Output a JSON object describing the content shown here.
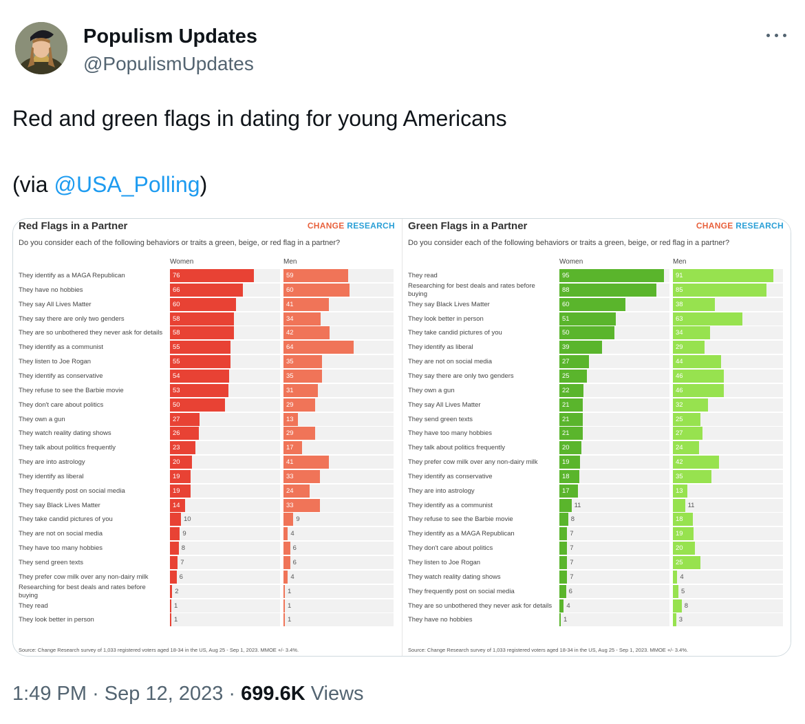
{
  "tweet": {
    "author_name": "Populism Updates",
    "handle": "@PopulismUpdates",
    "text_line1": "Red and green flags in dating for young Americans",
    "text_via_open": "(via ",
    "text_via_link": "@USA_Polling",
    "text_via_close": ")",
    "time": "1:49 PM",
    "separator": "·",
    "date": "Sep 12, 2023",
    "views_count": "699.6K",
    "views_label": "Views",
    "more_icon": "more-horizontal-icon"
  },
  "colors": {
    "red_women": "#e84234",
    "red_men": "#f07458",
    "green_women": "#5ab52c",
    "green_men": "#97e24f",
    "link": "#1d9bf0"
  },
  "chart_data": [
    {
      "type": "bar",
      "orientation": "horizontal",
      "title": "Red Flags in a Partner",
      "brand": [
        "CHANGE",
        "RESEARCH"
      ],
      "subtitle": "Do you consider each of the following behaviors or traits a green, beige, or red flag in a partner?",
      "source": "Source: Change Research survey of 1,033 registered voters aged 18-34 in the US, Aug 25 - Sep 1, 2023. MMOE +/- 3.4%.",
      "xlim": [
        0,
        100
      ],
      "categories": [
        "They identify as a MAGA Republican",
        "They have no hobbies",
        "They say All Lives Matter",
        "They say there are only two genders",
        "They are so unbothered they never ask for details",
        "They identify as a communist",
        "They listen to Joe Rogan",
        "They identify as conservative",
        "They refuse to see the Barbie movie",
        "They don't care about politics",
        "They own a gun",
        "They watch reality dating shows",
        "They talk about politics frequently",
        "They are into astrology",
        "They identify as liberal",
        "They frequently post on social media",
        "They say Black Lives Matter",
        "They take candid pictures of you",
        "They are not on social media",
        "They have too many hobbies",
        "They send green texts",
        "They prefer cow milk over any non-dairy milk",
        "Researching for best deals and rates before buying",
        "They read",
        "They look better in person"
      ],
      "series": [
        {
          "name": "Women",
          "values": [
            76,
            66,
            60,
            58,
            58,
            55,
            55,
            54,
            53,
            50,
            27,
            26,
            23,
            20,
            19,
            19,
            14,
            10,
            9,
            8,
            7,
            6,
            2,
            1,
            1
          ]
        },
        {
          "name": "Men",
          "values": [
            59,
            60,
            41,
            34,
            42,
            64,
            35,
            35,
            31,
            29,
            13,
            29,
            17,
            41,
            33,
            24,
            33,
            9,
            4,
            6,
            6,
            4,
            1,
            1,
            1
          ]
        }
      ]
    },
    {
      "type": "bar",
      "orientation": "horizontal",
      "title": "Green Flags in a Partner",
      "brand": [
        "CHANGE",
        "RESEARCH"
      ],
      "subtitle": "Do you consider each of the following behaviors or traits a green, beige, or red flag in a partner?",
      "source": "Source: Change Research survey of 1,033 registered voters aged 18-34 in the US, Aug 25 - Sep 1, 2023. MMOE +/- 3.4%.",
      "xlim": [
        0,
        100
      ],
      "categories": [
        "They read",
        "Researching for best deals and rates before buying",
        "They say Black Lives Matter",
        "They look better in person",
        "They take candid pictures of you",
        "They identify as liberal",
        "They are not on social media",
        "They say there are only two genders",
        "They own a gun",
        "They say All Lives Matter",
        "They send green texts",
        "They have too many hobbies",
        "They talk about politics frequently",
        "They prefer cow milk over any non-dairy milk",
        "They identify as conservative",
        "They are into astrology",
        "They identify as a communist",
        "They refuse to see the Barbie movie",
        "They identify as a MAGA Republican",
        "They don't care about politics",
        "They listen to Joe Rogan",
        "They watch reality dating shows",
        "They frequently post on social media",
        "They are so unbothered they never ask for details",
        "They have no hobbies"
      ],
      "series": [
        {
          "name": "Women",
          "values": [
            95,
            88,
            60,
            51,
            50,
            39,
            27,
            25,
            22,
            21,
            21,
            21,
            20,
            19,
            18,
            17,
            11,
            8,
            7,
            7,
            7,
            7,
            6,
            4,
            1
          ]
        },
        {
          "name": "Men",
          "values": [
            91,
            85,
            38,
            63,
            34,
            29,
            44,
            46,
            46,
            32,
            25,
            27,
            24,
            42,
            35,
            13,
            11,
            18,
            19,
            20,
            25,
            4,
            5,
            8,
            3
          ]
        }
      ]
    }
  ]
}
